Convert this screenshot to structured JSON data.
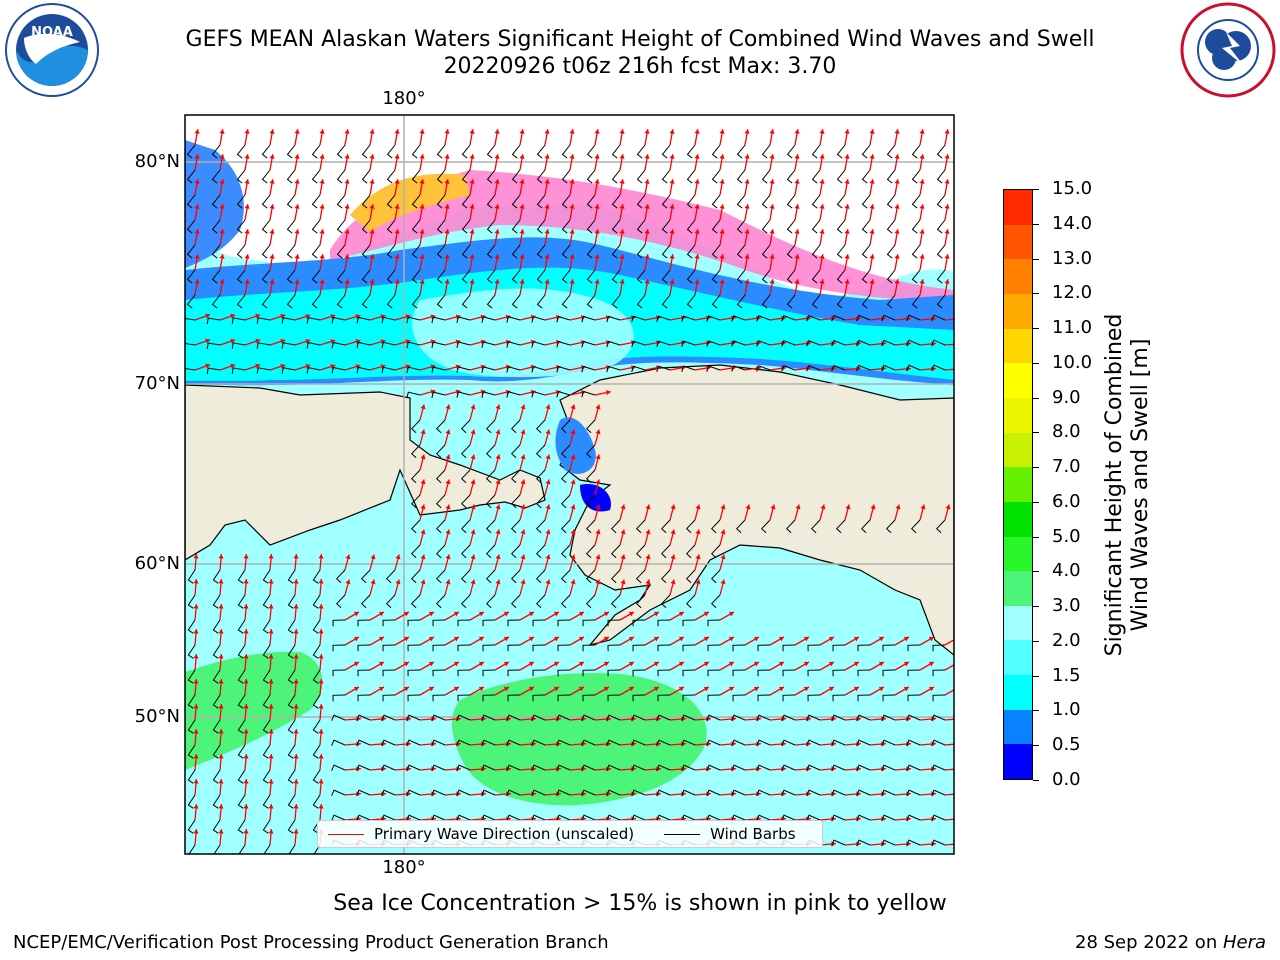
{
  "header": {
    "title_line1": "GEFS MEAN Alaskan Waters Significant Height of Combined Wind Waves and Swell",
    "title_line2": "20220926 t06z 216h fcst   Max: 3.70"
  },
  "logos": {
    "noaa_text": "NOAA",
    "nws_ring_text": "NATIONAL WEATHER SERVICE"
  },
  "map": {
    "lon_label_top": "180°",
    "lon_label_bottom": "180°",
    "lat_labels": [
      "80°N",
      "70°N",
      "60°N",
      "50°N"
    ],
    "colors": {
      "land": "#efecdc",
      "frame": "#000000",
      "grid": "#b0b0b0"
    }
  },
  "legend": {
    "wave_dir": "Primary Wave Direction (unscaled)",
    "wind_barbs": "Wind Barbs",
    "wave_color": "#ff0000",
    "barb_color": "#000000"
  },
  "colorbar": {
    "label_line1": "Significant Height of Combined",
    "label_line2": "Wind Waves and Swell [m]",
    "ticks": [
      "0.0",
      "0.5",
      "1.0",
      "1.5",
      "2.0",
      "3.0",
      "4.0",
      "5.0",
      "6.0",
      "7.0",
      "8.0",
      "9.0",
      "10.0",
      "11.0",
      "12.0",
      "13.0",
      "14.0",
      "15.0"
    ],
    "colors": [
      "#0000ff",
      "#0a82ff",
      "#00ffff",
      "#50ffff",
      "#a0ffff",
      "#4cf57a",
      "#2bf52b",
      "#00e100",
      "#66f000",
      "#c8f000",
      "#ebf500",
      "#ffff00",
      "#ffd700",
      "#ffaa00",
      "#ff8000",
      "#ff5500",
      "#ff2a00",
      "#ff0000"
    ]
  },
  "note": "Sea Ice Concentration > 15% is shown in pink to yellow",
  "footer": {
    "left": "NCEP/EMC/Verification Post Processing Product Generation Branch",
    "right_date": "28 Sep 2022 on ",
    "right_host": "Hera"
  }
}
